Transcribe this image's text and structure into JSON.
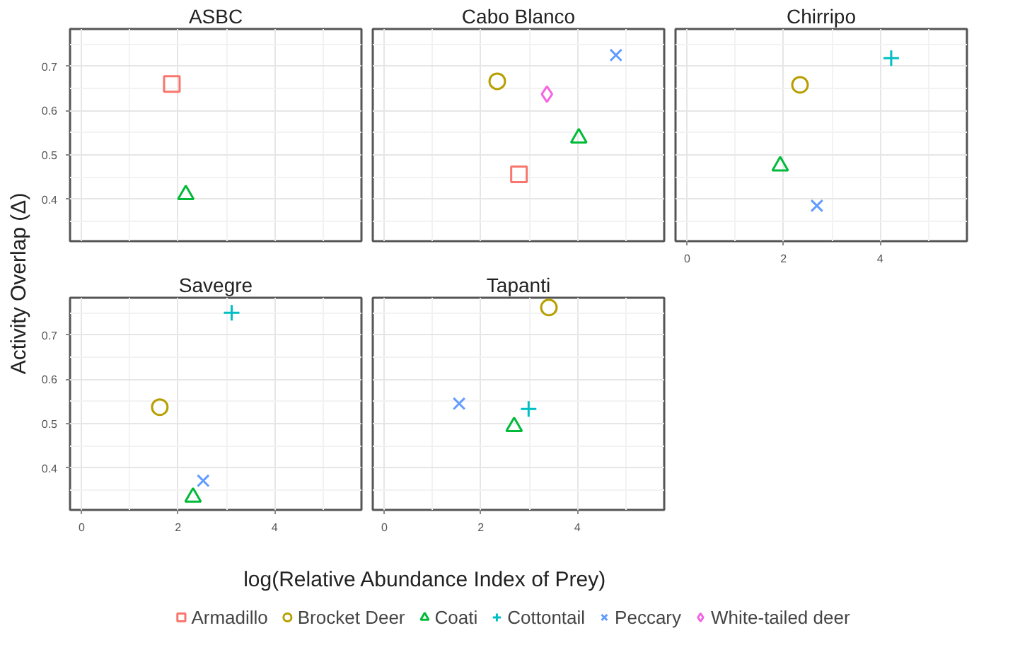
{
  "chart_data": [
    {
      "type": "scatter",
      "title": "ASBC",
      "ylabel": "Activity Overlap (Δ)",
      "xlabel": "log(Relative Abundance Index of Prey)",
      "xlim": [
        -0.24,
        5.8
      ],
      "ylim": [
        0.305,
        0.784
      ],
      "xticks": [
        0,
        2,
        4
      ],
      "yticks": [
        0.4,
        0.5,
        0.6,
        0.7
      ],
      "grid": true,
      "legend": "bottom",
      "tick_labels": "y",
      "series": [
        {
          "name": "Armadillo",
          "color": "#f8766d",
          "marker": "square",
          "x": [
            1.87
          ],
          "values": [
            0.66
          ]
        },
        {
          "name": "Coati",
          "color": "#00ba38",
          "marker": "triangle",
          "x": [
            2.16
          ],
          "values": [
            0.41
          ]
        }
      ]
    },
    {
      "type": "scatter",
      "title": "Cabo Blanco",
      "xlim": [
        -0.24,
        5.8
      ],
      "ylim": [
        0.305,
        0.784
      ],
      "xticks": [
        0,
        2,
        4
      ],
      "yticks": [
        0.4,
        0.5,
        0.6,
        0.7
      ],
      "grid": true,
      "legend": "bottom",
      "tick_labels": false,
      "series": [
        {
          "color": "#f8766d",
          "marker": "square",
          "x": [
            2.79
          ],
          "values": [
            0.456
          ]
        },
        {
          "name": "Brocket Deer",
          "color": "#b79f00",
          "marker": "circle",
          "x": [
            2.34
          ],
          "values": [
            0.666
          ]
        },
        {
          "color": "#00ba38",
          "marker": "triangle",
          "x": [
            4.03
          ],
          "values": [
            0.538
          ]
        },
        {
          "name": "Peccary",
          "color": "#619cff",
          "marker": "x",
          "x": [
            4.8
          ],
          "values": [
            0.725
          ]
        },
        {
          "name": "White-tailed deer",
          "color": "#f564e3",
          "marker": "diamond",
          "x": [
            3.37
          ],
          "values": [
            0.637
          ]
        }
      ]
    },
    {
      "type": "scatter",
      "title": "Chirripo",
      "xlim": [
        -0.24,
        5.8
      ],
      "ylim": [
        0.305,
        0.784
      ],
      "xticks": [
        0,
        2,
        4
      ],
      "yticks": [
        0.4,
        0.5,
        0.6,
        0.7
      ],
      "grid": true,
      "legend": "bottom",
      "tick_labels": "x",
      "series": [
        {
          "color": "#b79f00",
          "marker": "circle",
          "x": [
            2.34
          ],
          "values": [
            0.658
          ]
        },
        {
          "color": "#00ba38",
          "marker": "triangle",
          "x": [
            1.93
          ],
          "values": [
            0.475
          ]
        },
        {
          "name": "Cottontail",
          "color": "#00bfc4",
          "marker": "cross",
          "x": [
            4.23
          ],
          "values": [
            0.718
          ]
        },
        {
          "color": "#619cff",
          "marker": "x",
          "x": [
            2.69
          ],
          "values": [
            0.385
          ]
        }
      ]
    },
    {
      "type": "scatter",
      "title": "Savegre",
      "xlim": [
        -0.24,
        5.8
      ],
      "ylim": [
        0.305,
        0.784
      ],
      "xticks": [
        0,
        2,
        4
      ],
      "yticks": [
        0.4,
        0.5,
        0.6,
        0.7
      ],
      "grid": true,
      "series": [
        {
          "color": "#b79f00",
          "marker": "circle",
          "x": [
            1.62
          ],
          "values": [
            0.537
          ]
        },
        {
          "color": "#00ba38",
          "marker": "triangle",
          "x": [
            2.31
          ],
          "values": [
            0.334
          ]
        },
        {
          "color": "#00bfc4",
          "marker": "cross",
          "x": [
            3.11
          ],
          "values": [
            0.75
          ]
        },
        {
          "color": "#619cff",
          "marker": "x",
          "x": [
            2.52
          ],
          "values": [
            0.371
          ]
        }
      ]
    },
    {
      "type": "scatter",
      "title": "Tapanti",
      "xlim": [
        -0.24,
        5.8
      ],
      "ylim": [
        0.305,
        0.784
      ],
      "xticks": [
        0,
        2,
        4
      ],
      "yticks": [
        0.4,
        0.5,
        0.6,
        0.7
      ],
      "grid": true,
      "tick_labels": "x",
      "series": [
        {
          "color": "#b79f00",
          "marker": "circle",
          "x": [
            3.41
          ],
          "values": [
            0.762
          ]
        },
        {
          "color": "#00ba38",
          "marker": "triangle",
          "x": [
            2.69
          ],
          "values": [
            0.493
          ]
        },
        {
          "color": "#00bfc4",
          "marker": "cross",
          "x": [
            2.99
          ],
          "values": [
            0.533
          ]
        },
        {
          "color": "#619cff",
          "marker": "x",
          "x": [
            1.55
          ],
          "values": [
            0.545
          ]
        }
      ]
    }
  ]
}
